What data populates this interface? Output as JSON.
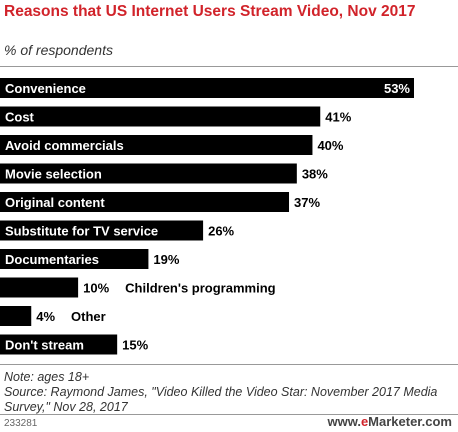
{
  "header": {
    "title": "Reasons that US Internet Users Stream Video, Nov 2017",
    "subtitle": "% of respondents"
  },
  "chart_data": {
    "type": "bar",
    "orientation": "horizontal",
    "unit": "%",
    "categories": [
      "Convenience",
      "Cost",
      "Avoid commercials",
      "Movie selection",
      "Original content",
      "Substitute for TV service",
      "Documentaries",
      "Children's programming",
      "Other",
      "Don't stream"
    ],
    "values": [
      53,
      41,
      40,
      38,
      37,
      26,
      19,
      10,
      4,
      15
    ],
    "value_labels": [
      "53%",
      "41%",
      "40%",
      "38%",
      "37%",
      "26%",
      "19%",
      "10%",
      "4%",
      "15%"
    ],
    "bar_color": "#000000",
    "label_color_inside_bar": "#ffffff",
    "grid": false,
    "legend": "none"
  },
  "footer": {
    "note": "Note: ages 18+",
    "source": "Source: Raymond James, \"Video Killed the Video Star: November 2017 Media Survey,\" Nov 28, 2017",
    "chart_id": "233281",
    "brand_prefix": "www.",
    "brand_accent": "e",
    "brand_suffix": "Marketer.com"
  }
}
